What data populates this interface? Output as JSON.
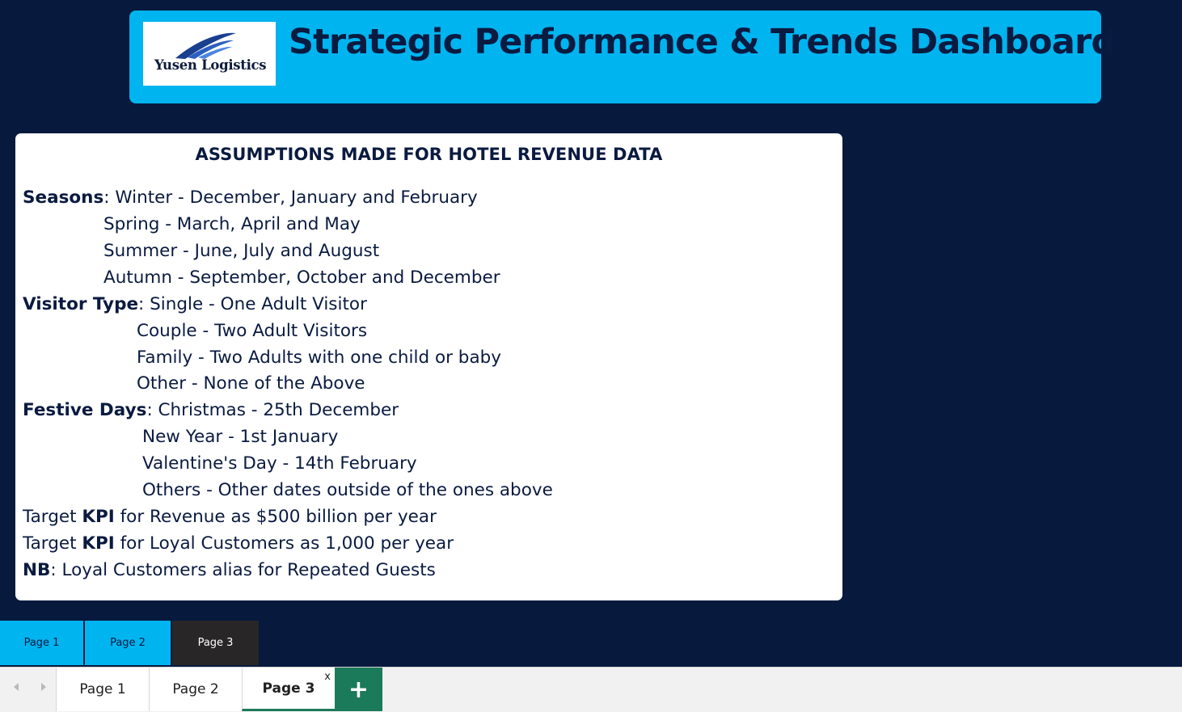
{
  "header": {
    "logo_text": "Yusen Logistics",
    "title": "Strategic Performance & Trends Dashboard"
  },
  "card": {
    "title": "ASSUMPTIONS MADE FOR HOTEL REVENUE DATA",
    "seasons": {
      "label": "Seasons",
      "items": [
        ": Winter - December, January and February",
        "Spring - March, April and May",
        "Summer - June, July and August",
        "Autumn - September, October and December"
      ]
    },
    "visitor_type": {
      "label": "Visitor Type",
      "items": [
        ": Single - One Adult Visitor",
        "Couple - Two Adult Visitors",
        "Family - Two Adults with one child or baby",
        "Other - None of the Above"
      ]
    },
    "festive_days": {
      "label": "Festive Days",
      "items": [
        ": Christmas - 25th December",
        "New Year - 1st January",
        "Valentine's Day - 14th February",
        "Others - Other dates outside of the ones above"
      ]
    },
    "kpi_revenue": {
      "pre": "Target ",
      "bold": "KPI",
      "post": " for Revenue as $500 billion per year"
    },
    "kpi_loyal": {
      "pre": "Target ",
      "bold": "KPI",
      "post": " for Loyal Customers as 1,000 per year"
    },
    "nb": {
      "bold": "NB",
      "post": ": Loyal Customers alias for Repeated Guests"
    }
  },
  "page_nav": {
    "buttons": [
      "Page 1",
      "Page 2",
      "Page 3"
    ],
    "active": "Page 3"
  },
  "tabs": {
    "items": [
      "Page 1",
      "Page 2",
      "Page 3"
    ],
    "selected": "Page 3",
    "close_label": "x",
    "add_label": "+"
  },
  "colors": {
    "background": "#071a3e",
    "header_accent": "#00b4ef",
    "active_button": "#282626",
    "tab_add": "#1b7a5a"
  }
}
